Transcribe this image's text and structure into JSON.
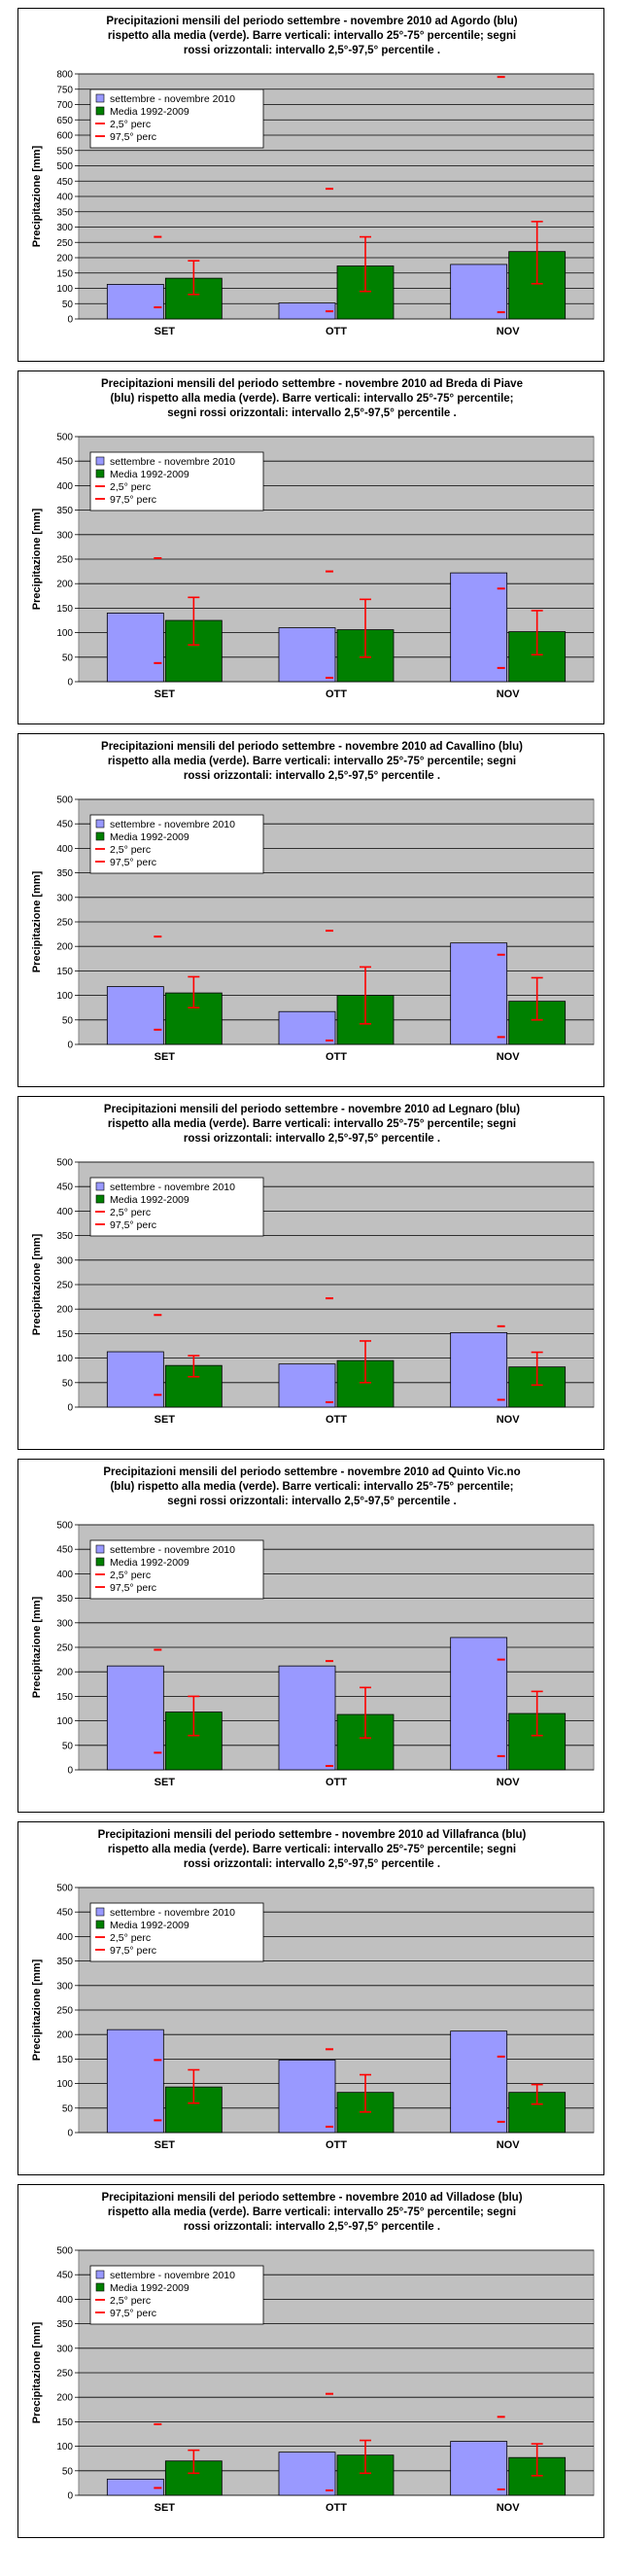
{
  "colors": {
    "series_2010": "#9999ff",
    "series_media": "#008000",
    "plot_bg": "#c0c0c0",
    "error": "#ff0000"
  },
  "legend": {
    "items": [
      "settembre - novembre 2010",
      "Media 1992-2009",
      "2,5° perc",
      "97,5° perc"
    ]
  },
  "chart_data": [
    {
      "type": "bar",
      "title_lines": [
        "Precipitazioni mensili del periodo settembre - novembre 2010 ad Agordo (blu)",
        "rispetto alla media (verde).  Barre verticali: intervallo 25°-75° percentile;  segni",
        "rossi orizzontali: intervallo 2,5°-97,5° percentile ."
      ],
      "ylabel": "Precipitazione [mm]",
      "ylim": [
        0,
        800
      ],
      "ystep": 50,
      "categories": [
        "SET",
        "OTT",
        "NOV"
      ],
      "series": [
        {
          "name": "settembre - novembre 2010",
          "values": [
            113,
            52,
            178
          ]
        },
        {
          "name": "Media 1992-2009",
          "values": [
            133,
            173,
            220
          ]
        }
      ],
      "iqr": [
        [
          80,
          190
        ],
        [
          90,
          268
        ],
        [
          115,
          318
        ]
      ],
      "p2_5": [
        38,
        25,
        22
      ],
      "p97_5": [
        268,
        425,
        790
      ]
    },
    {
      "type": "bar",
      "title_lines": [
        "Precipitazioni mensili del periodo settembre - novembre 2010 ad Breda di Piave",
        "(blu) rispetto alla media (verde).  Barre verticali: intervallo 25°-75° percentile;",
        "segni rossi orizzontali: intervallo 2,5°-97,5° percentile ."
      ],
      "ylabel": "Precipitazione [mm]",
      "ylim": [
        0,
        500
      ],
      "ystep": 50,
      "categories": [
        "SET",
        "OTT",
        "NOV"
      ],
      "series": [
        {
          "name": "settembre - novembre 2010",
          "values": [
            140,
            110,
            222
          ]
        },
        {
          "name": "Media 1992-2009",
          "values": [
            125,
            106,
            102
          ]
        }
      ],
      "iqr": [
        [
          75,
          172
        ],
        [
          50,
          168
        ],
        [
          55,
          145
        ]
      ],
      "p2_5": [
        38,
        8,
        28
      ],
      "p97_5": [
        252,
        225,
        190
      ]
    },
    {
      "type": "bar",
      "title_lines": [
        "Precipitazioni mensili del periodo settembre - novembre 2010 ad Cavallino (blu)",
        "rispetto alla media (verde).  Barre verticali: intervallo 25°-75° percentile;  segni",
        "rossi orizzontali: intervallo 2,5°-97,5° percentile ."
      ],
      "ylabel": "Precipitazione [mm]",
      "ylim": [
        0,
        500
      ],
      "ystep": 50,
      "categories": [
        "SET",
        "OTT",
        "NOV"
      ],
      "series": [
        {
          "name": "settembre - novembre 2010",
          "values": [
            118,
            67,
            207
          ]
        },
        {
          "name": "Media 1992-2009",
          "values": [
            105,
            100,
            88
          ]
        }
      ],
      "iqr": [
        [
          75,
          138
        ],
        [
          42,
          158
        ],
        [
          50,
          136
        ]
      ],
      "p2_5": [
        30,
        8,
        15
      ],
      "p97_5": [
        220,
        232,
        183
      ]
    },
    {
      "type": "bar",
      "title_lines": [
        "Precipitazioni mensili del periodo settembre - novembre 2010 ad Legnaro (blu)",
        "rispetto alla media (verde).  Barre verticali: intervallo 25°-75° percentile;  segni",
        "rossi orizzontali: intervallo 2,5°-97,5° percentile ."
      ],
      "ylabel": "Precipitazione [mm]",
      "ylim": [
        0,
        500
      ],
      "ystep": 50,
      "categories": [
        "SET",
        "OTT",
        "NOV"
      ],
      "series": [
        {
          "name": "settembre - novembre 2010",
          "values": [
            113,
            88,
            152
          ]
        },
        {
          "name": "Media 1992-2009",
          "values": [
            85,
            95,
            82
          ]
        }
      ],
      "iqr": [
        [
          62,
          105
        ],
        [
          50,
          135
        ],
        [
          45,
          112
        ]
      ],
      "p2_5": [
        25,
        10,
        15
      ],
      "p97_5": [
        188,
        222,
        165
      ]
    },
    {
      "type": "bar",
      "title_lines": [
        "Precipitazioni mensili del periodo settembre - novembre 2010 ad Quinto Vic.no",
        "(blu) rispetto alla media (verde).  Barre verticali: intervallo 25°-75° percentile;",
        "segni rossi orizzontali: intervallo 2,5°-97,5° percentile ."
      ],
      "ylabel": "Precipitazione [mm]",
      "ylim": [
        0,
        500
      ],
      "ystep": 50,
      "categories": [
        "SET",
        "OTT",
        "NOV"
      ],
      "series": [
        {
          "name": "settembre - novembre 2010",
          "values": [
            212,
            212,
            270
          ]
        },
        {
          "name": "Media 1992-2009",
          "values": [
            118,
            113,
            115
          ]
        }
      ],
      "iqr": [
        [
          70,
          150
        ],
        [
          65,
          168
        ],
        [
          70,
          160
        ]
      ],
      "p2_5": [
        35,
        8,
        28
      ],
      "p97_5": [
        245,
        222,
        225
      ]
    },
    {
      "type": "bar",
      "title_lines": [
        "Precipitazioni mensili del periodo settembre - novembre 2010 ad Villafranca (blu)",
        "rispetto alla media (verde).  Barre verticali: intervallo 25°-75° percentile;  segni",
        "rossi orizzontali: intervallo 2,5°-97,5° percentile ."
      ],
      "ylabel": "Precipitazione [mm]",
      "ylim": [
        0,
        500
      ],
      "ystep": 50,
      "categories": [
        "SET",
        "OTT",
        "NOV"
      ],
      "series": [
        {
          "name": "settembre - novembre 2010",
          "values": [
            210,
            148,
            207
          ]
        },
        {
          "name": "Media 1992-2009",
          "values": [
            93,
            82,
            82
          ]
        }
      ],
      "iqr": [
        [
          60,
          128
        ],
        [
          42,
          118
        ],
        [
          58,
          98
        ]
      ],
      "p2_5": [
        25,
        12,
        22
      ],
      "p97_5": [
        148,
        170,
        155
      ]
    },
    {
      "type": "bar",
      "title_lines": [
        "Precipitazioni mensili del periodo settembre - novembre 2010 ad Villadose (blu)",
        "rispetto alla media (verde).  Barre verticali: intervallo 25°-75° percentile;  segni",
        "rossi orizzontali: intervallo 2,5°-97,5° percentile ."
      ],
      "ylabel": "Precipitazione [mm]",
      "ylim": [
        0,
        500
      ],
      "ystep": 50,
      "categories": [
        "SET",
        "OTT",
        "NOV"
      ],
      "series": [
        {
          "name": "settembre - novembre 2010",
          "values": [
            33,
            88,
            110
          ]
        },
        {
          "name": "Media 1992-2009",
          "values": [
            70,
            82,
            77
          ]
        }
      ],
      "iqr": [
        [
          45,
          92
        ],
        [
          45,
          112
        ],
        [
          40,
          105
        ]
      ],
      "p2_5": [
        15,
        10,
        12
      ],
      "p97_5": [
        145,
        207,
        160
      ]
    }
  ]
}
